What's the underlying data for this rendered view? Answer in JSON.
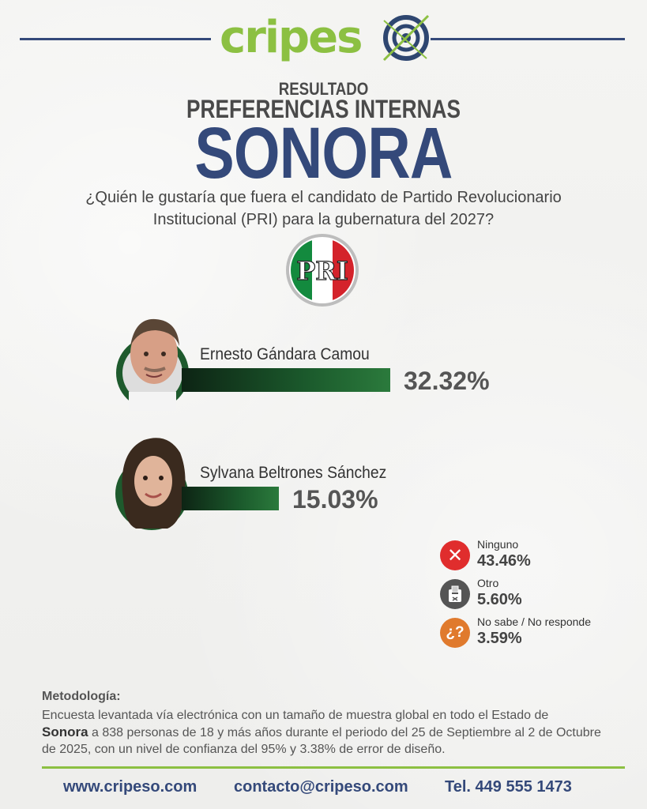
{
  "header": {
    "logo_part1": "cripes",
    "logo_part2": "o"
  },
  "title": {
    "line1": "RESULTADO",
    "line2": "PREFERENCIAS INTERNAS",
    "line3": "SONORA"
  },
  "question": "¿Quién le gustaría que fuera el candidato de Partido Revolucionario Institucional (PRI) para la gubernatura del 2027?",
  "party_logo": {
    "text": "PRI",
    "icon": "pri-logo-icon"
  },
  "chart_data": {
    "type": "bar",
    "orientation": "horizontal",
    "unit": "%",
    "categories": [
      "Ernesto Gándara Camou",
      "Sylvana Beltrones Sánchez"
    ],
    "values": [
      32.32,
      15.03
    ],
    "labels": [
      "32.32%",
      "15.03%"
    ],
    "colors": [
      "#1b5a2c"
    ],
    "others": [
      {
        "label": "Ninguno",
        "value": 43.46,
        "display": "43.46%",
        "icon": "x-icon",
        "color": "#e02d2d"
      },
      {
        "label": "Otro",
        "value": 5.6,
        "display": "5.60%",
        "icon": "ballot-box-icon",
        "color": "#555555"
      },
      {
        "label": "No sabe / No responde",
        "value": 3.59,
        "display": "3.59%",
        "icon": "question-icon",
        "color": "#e07a2d"
      }
    ]
  },
  "methodology": {
    "title": "Metodología:",
    "text_1": "Encuesta levantada vía electrónica con un tamaño de muestra global en todo el Estado de",
    "state": "Sonora",
    "text_2": " a 838 personas de 18 y más años durante el periodo del 25 de Septiembre al 2 de Octubre de 2025, con un nivel de confianza del 95% y 3.38% de error de diseño."
  },
  "footer": {
    "website": "www.cripeso.com",
    "email": "contacto@cripeso.com",
    "phone": "Tel. 449 555 1473"
  },
  "colors": {
    "brand_blue": "#34497a",
    "brand_green": "#8cc042",
    "bar_green": "#1b5a2c"
  }
}
